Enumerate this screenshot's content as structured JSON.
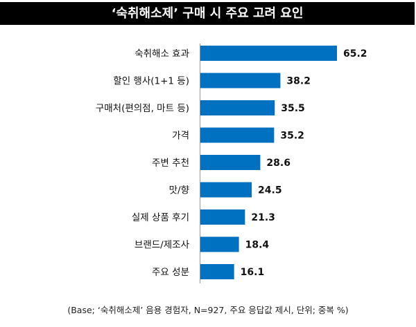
{
  "chart_data": {
    "type": "bar",
    "orientation": "horizontal",
    "title": "‘숙취해소제’ 구매 시 주요 고려 요인",
    "categories": [
      "숙취해소 효과",
      "할인 행사(1+1 등)",
      "구매처(편의점, 마트 등)",
      "가격",
      "주변 추천",
      "맛/향",
      "실제 상품 후기",
      "브랜드/제조사",
      "주요 성분"
    ],
    "values": [
      65.2,
      38.2,
      35.5,
      35.2,
      28.6,
      24.5,
      21.3,
      18.4,
      16.1
    ],
    "value_labels": [
      "65.2",
      "38.2",
      "35.5",
      "35.2",
      "28.6",
      "24.5",
      "21.3",
      "18.4",
      "16.1"
    ],
    "xlim": [
      0,
      70
    ],
    "bar_color": "#0070c0",
    "grid": false,
    "note": "(Base; ‘숙취해소제’ 음용 경험자, N=927, 주요 응답값 제시, 단위; 중복 %)"
  }
}
